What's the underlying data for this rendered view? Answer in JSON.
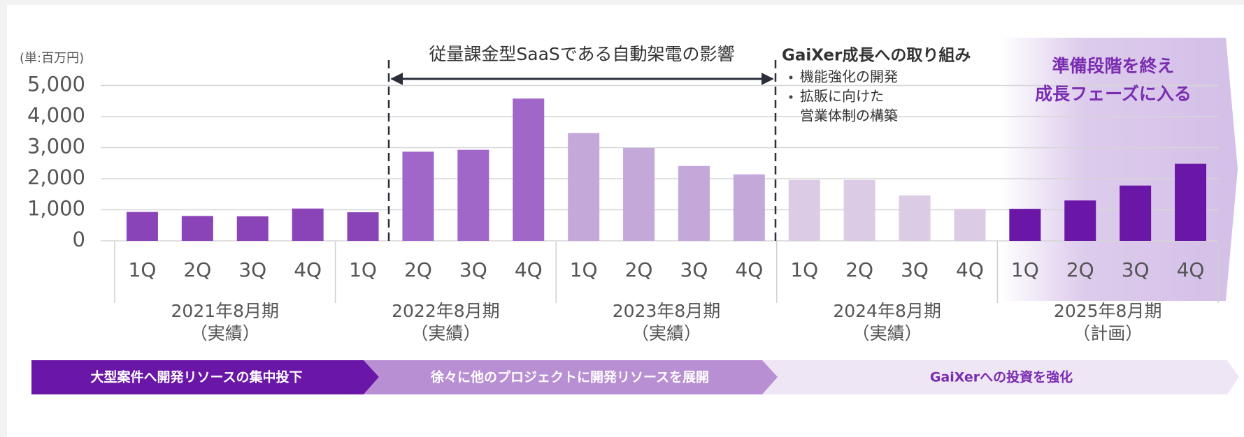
{
  "chart_data": {
    "type": "bar",
    "unit_label": "(単:百万円)",
    "categories": [
      "1Q",
      "2Q",
      "3Q",
      "4Q",
      "1Q",
      "2Q",
      "3Q",
      "4Q",
      "1Q",
      "2Q",
      "3Q",
      "4Q",
      "1Q",
      "2Q",
      "3Q",
      "4Q",
      "1Q",
      "2Q",
      "3Q",
      "4Q"
    ],
    "values": [
      930,
      800,
      790,
      1040,
      920,
      2870,
      2930,
      4580,
      3470,
      2990,
      2410,
      2140,
      1960,
      1960,
      1460,
      1030,
      1030,
      1300,
      1780,
      2480
    ],
    "colors": [
      "#8a44b8",
      "#8a44b8",
      "#8a44b8",
      "#8a44b8",
      "#8a44b8",
      "#a066c8",
      "#a066c8",
      "#a066c8",
      "#c5a8da",
      "#c5a8da",
      "#c5a8da",
      "#c5a8da",
      "#dccbe4",
      "#dccbe4",
      "#dccbe4",
      "#dccbe4",
      "#6a16a6",
      "#6a16a6",
      "#6a16a6",
      "#6a16a6"
    ],
    "groups": [
      {
        "label": "2021年8月期",
        "note": "（実績）"
      },
      {
        "label": "2022年8月期",
        "note": "（実績）"
      },
      {
        "label": "2023年8月期",
        "note": "（実績）"
      },
      {
        "label": "2024年8月期",
        "note": "（実績）"
      },
      {
        "label": "2025年8月期",
        "note": "（計画）"
      }
    ],
    "ylim": [
      0,
      5000
    ],
    "yticks": [
      0,
      {
        "value": 1000,
        "label": "1,000"
      },
      {
        "value": 2000,
        "label": "2,000"
      },
      {
        "value": 3000,
        "label": "3,000"
      },
      {
        "value": 4000,
        "label": "4,000"
      },
      {
        "value": 5000,
        "label": "5,000"
      }
    ],
    "grid": true,
    "impact_title": "従量課金型SaaSである自動架電の影響",
    "growth_title": "GaiXer成長への取り組み",
    "growth_items": [
      [
        "機能強化の開発"
      ],
      [
        "拡販に向けた",
        "営業体制の構築"
      ]
    ],
    "phase_text": [
      "準備段階を終え",
      "成長フェーズに入る"
    ],
    "phases": [
      "大型案件へ開発リソースの集中投下",
      "徐々に他のプロジェクトに開発リソースを展開",
      "GaiXerへの投資を強化"
    ]
  }
}
